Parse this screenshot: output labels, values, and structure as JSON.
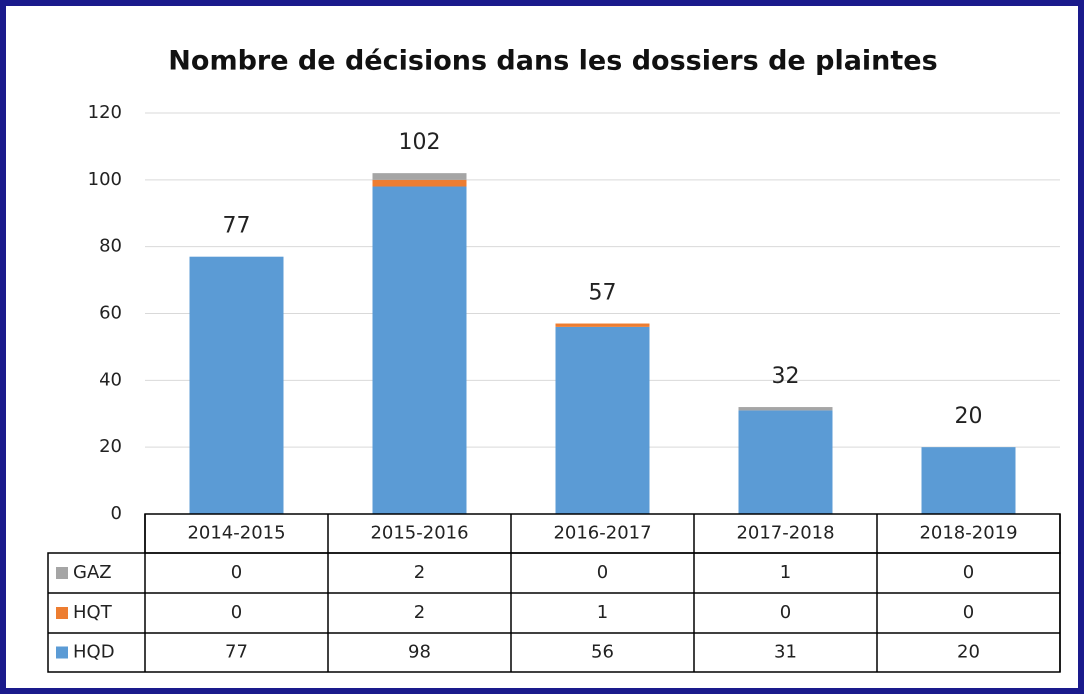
{
  "chart_data": {
    "type": "stacked_bar",
    "title": "Nombre de décisions dans les dossiers de plaintes",
    "categories": [
      "2014-2015",
      "2015-2016",
      "2016-2017",
      "2017-2018",
      "2018-2019"
    ],
    "series": [
      {
        "name": "GAZ",
        "color": "#a5a5a5",
        "values": [
          0,
          2,
          0,
          1,
          0
        ]
      },
      {
        "name": "HQT",
        "color": "#ed7d31",
        "values": [
          0,
          2,
          1,
          0,
          0
        ]
      },
      {
        "name": "HQD",
        "color": "#5b9bd5",
        "values": [
          77,
          98,
          56,
          31,
          20
        ]
      }
    ],
    "totals": [
      77,
      102,
      57,
      32,
      20
    ],
    "ylim": [
      0,
      120
    ],
    "yticks": [
      0,
      20,
      40,
      60,
      80,
      100,
      120
    ],
    "grid": true
  }
}
